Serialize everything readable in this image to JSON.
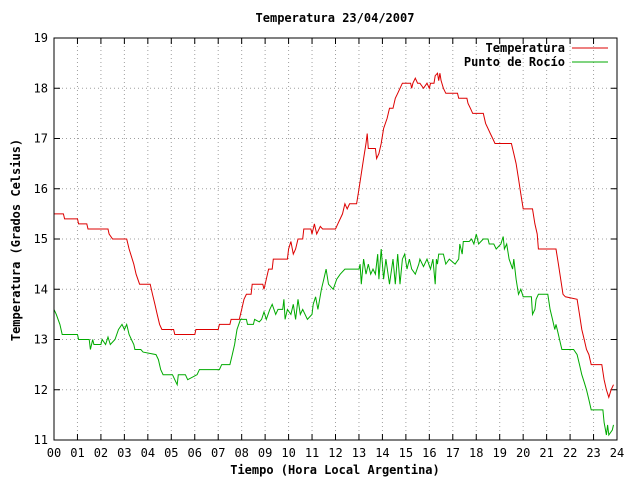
{
  "chart_data": {
    "type": "line",
    "title": "Temperatura 23/04/2007",
    "xlabel": "Tiempo (Hora Local Argentina)",
    "ylabel": "Temperatura (Grados Celsius)",
    "xlim": [
      0,
      24
    ],
    "ylim": [
      11,
      19
    ],
    "grid": true,
    "legend_position": "top-right",
    "x_ticks": [
      "00",
      "01",
      "02",
      "03",
      "04",
      "05",
      "06",
      "07",
      "08",
      "09",
      "10",
      "11",
      "12",
      "13",
      "14",
      "15",
      "16",
      "17",
      "18",
      "19",
      "20",
      "21",
      "22",
      "23",
      "24"
    ],
    "y_ticks": [
      "11",
      "12",
      "13",
      "14",
      "15",
      "16",
      "17",
      "18",
      "19"
    ],
    "series": [
      {
        "name": "Temperatura",
        "color": "#dd0000",
        "points": [
          [
            0.0,
            15.5
          ],
          [
            0.4,
            15.5
          ],
          [
            0.45,
            15.4
          ],
          [
            1.0,
            15.4
          ],
          [
            1.05,
            15.3
          ],
          [
            1.4,
            15.3
          ],
          [
            1.45,
            15.2
          ],
          [
            2.3,
            15.2
          ],
          [
            2.35,
            15.1
          ],
          [
            2.5,
            15.0
          ],
          [
            3.1,
            15.0
          ],
          [
            3.2,
            14.8
          ],
          [
            3.4,
            14.5
          ],
          [
            3.5,
            14.3
          ],
          [
            3.65,
            14.1
          ],
          [
            4.1,
            14.1
          ],
          [
            4.2,
            13.9
          ],
          [
            4.3,
            13.7
          ],
          [
            4.4,
            13.5
          ],
          [
            4.5,
            13.3
          ],
          [
            4.6,
            13.2
          ],
          [
            5.1,
            13.2
          ],
          [
            5.15,
            13.1
          ],
          [
            6.0,
            13.1
          ],
          [
            6.05,
            13.2
          ],
          [
            7.0,
            13.2
          ],
          [
            7.05,
            13.3
          ],
          [
            7.5,
            13.3
          ],
          [
            7.55,
            13.4
          ],
          [
            7.9,
            13.4
          ],
          [
            8.0,
            13.6
          ],
          [
            8.1,
            13.8
          ],
          [
            8.2,
            13.9
          ],
          [
            8.4,
            13.9
          ],
          [
            8.45,
            14.1
          ],
          [
            8.9,
            14.1
          ],
          [
            8.95,
            14.0
          ],
          [
            9.05,
            14.2
          ],
          [
            9.15,
            14.4
          ],
          [
            9.3,
            14.4
          ],
          [
            9.35,
            14.6
          ],
          [
            9.95,
            14.6
          ],
          [
            10.0,
            14.8
          ],
          [
            10.1,
            14.95
          ],
          [
            10.2,
            14.7
          ],
          [
            10.3,
            14.8
          ],
          [
            10.4,
            15.0
          ],
          [
            10.6,
            15.0
          ],
          [
            10.65,
            15.2
          ],
          [
            10.95,
            15.2
          ],
          [
            11.0,
            15.1
          ],
          [
            11.1,
            15.3
          ],
          [
            11.2,
            15.1
          ],
          [
            11.35,
            15.25
          ],
          [
            11.45,
            15.2
          ],
          [
            12.0,
            15.2
          ],
          [
            12.1,
            15.3
          ],
          [
            12.3,
            15.5
          ],
          [
            12.4,
            15.7
          ],
          [
            12.5,
            15.6
          ],
          [
            12.6,
            15.7
          ],
          [
            12.9,
            15.7
          ],
          [
            13.0,
            16.0
          ],
          [
            13.1,
            16.3
          ],
          [
            13.2,
            16.6
          ],
          [
            13.3,
            16.9
          ],
          [
            13.35,
            17.1
          ],
          [
            13.4,
            16.8
          ],
          [
            13.5,
            16.8
          ],
          [
            13.7,
            16.8
          ],
          [
            13.75,
            16.6
          ],
          [
            13.85,
            16.7
          ],
          [
            13.95,
            16.9
          ],
          [
            14.05,
            17.2
          ],
          [
            14.2,
            17.4
          ],
          [
            14.3,
            17.6
          ],
          [
            14.45,
            17.6
          ],
          [
            14.55,
            17.8
          ],
          [
            14.65,
            17.9
          ],
          [
            14.75,
            18.0
          ],
          [
            14.85,
            18.1
          ],
          [
            15.2,
            18.1
          ],
          [
            15.25,
            18.0
          ],
          [
            15.3,
            18.1
          ],
          [
            15.4,
            18.2
          ],
          [
            15.5,
            18.1
          ],
          [
            15.6,
            18.1
          ],
          [
            15.75,
            18.0
          ],
          [
            15.9,
            18.1
          ],
          [
            16.0,
            18.0
          ],
          [
            16.05,
            18.1
          ],
          [
            16.2,
            18.1
          ],
          [
            16.25,
            18.25
          ],
          [
            16.35,
            18.3
          ],
          [
            16.4,
            18.15
          ],
          [
            16.45,
            18.3
          ],
          [
            16.5,
            18.15
          ],
          [
            16.6,
            18.0
          ],
          [
            16.7,
            17.9
          ],
          [
            17.2,
            17.9
          ],
          [
            17.25,
            17.8
          ],
          [
            17.6,
            17.8
          ],
          [
            17.65,
            17.7
          ],
          [
            17.75,
            17.6
          ],
          [
            17.85,
            17.5
          ],
          [
            18.3,
            17.5
          ],
          [
            18.4,
            17.3
          ],
          [
            18.6,
            17.1
          ],
          [
            18.7,
            17.0
          ],
          [
            18.8,
            16.9
          ],
          [
            19.5,
            16.9
          ],
          [
            19.6,
            16.7
          ],
          [
            19.7,
            16.5
          ],
          [
            19.8,
            16.2
          ],
          [
            19.9,
            15.9
          ],
          [
            20.0,
            15.6
          ],
          [
            20.4,
            15.6
          ],
          [
            20.5,
            15.3
          ],
          [
            20.6,
            15.1
          ],
          [
            20.65,
            14.8
          ],
          [
            21.4,
            14.8
          ],
          [
            21.5,
            14.5
          ],
          [
            21.6,
            14.2
          ],
          [
            21.7,
            13.9
          ],
          [
            21.8,
            13.85
          ],
          [
            22.3,
            13.8
          ],
          [
            22.4,
            13.5
          ],
          [
            22.5,
            13.2
          ],
          [
            22.6,
            13.0
          ],
          [
            22.7,
            12.8
          ],
          [
            22.8,
            12.7
          ],
          [
            22.9,
            12.5
          ],
          [
            23.35,
            12.5
          ],
          [
            23.45,
            12.2
          ],
          [
            23.55,
            12.0
          ],
          [
            23.65,
            11.85
          ],
          [
            23.75,
            12.0
          ],
          [
            23.85,
            12.1
          ]
        ]
      },
      {
        "name": "Punto de Rocío",
        "color": "#00aa00",
        "points": [
          [
            0.0,
            13.6
          ],
          [
            0.1,
            13.5
          ],
          [
            0.25,
            13.3
          ],
          [
            0.35,
            13.1
          ],
          [
            1.0,
            13.1
          ],
          [
            1.05,
            13.0
          ],
          [
            1.5,
            13.0
          ],
          [
            1.55,
            12.8
          ],
          [
            1.65,
            13.0
          ],
          [
            1.7,
            12.9
          ],
          [
            2.0,
            12.9
          ],
          [
            2.05,
            13.0
          ],
          [
            2.2,
            12.9
          ],
          [
            2.3,
            13.05
          ],
          [
            2.4,
            12.9
          ],
          [
            2.6,
            13.0
          ],
          [
            2.75,
            13.2
          ],
          [
            2.9,
            13.3
          ],
          [
            3.0,
            13.2
          ],
          [
            3.1,
            13.3
          ],
          [
            3.2,
            13.1
          ],
          [
            3.3,
            13.0
          ],
          [
            3.4,
            12.9
          ],
          [
            3.45,
            12.8
          ],
          [
            3.7,
            12.8
          ],
          [
            3.8,
            12.75
          ],
          [
            4.35,
            12.7
          ],
          [
            4.45,
            12.6
          ],
          [
            4.55,
            12.4
          ],
          [
            4.65,
            12.3
          ],
          [
            5.05,
            12.3
          ],
          [
            5.15,
            12.2
          ],
          [
            5.25,
            12.1
          ],
          [
            5.3,
            12.3
          ],
          [
            5.6,
            12.3
          ],
          [
            5.7,
            12.2
          ],
          [
            6.1,
            12.3
          ],
          [
            6.2,
            12.4
          ],
          [
            7.05,
            12.4
          ],
          [
            7.15,
            12.5
          ],
          [
            7.5,
            12.5
          ],
          [
            7.6,
            12.7
          ],
          [
            7.7,
            12.9
          ],
          [
            7.8,
            13.2
          ],
          [
            7.95,
            13.4
          ],
          [
            8.2,
            13.4
          ],
          [
            8.25,
            13.3
          ],
          [
            8.5,
            13.3
          ],
          [
            8.55,
            13.4
          ],
          [
            8.75,
            13.35
          ],
          [
            8.85,
            13.4
          ],
          [
            8.95,
            13.55
          ],
          [
            9.05,
            13.4
          ],
          [
            9.2,
            13.6
          ],
          [
            9.3,
            13.7
          ],
          [
            9.45,
            13.5
          ],
          [
            9.55,
            13.6
          ],
          [
            9.75,
            13.6
          ],
          [
            9.8,
            13.8
          ],
          [
            9.85,
            13.4
          ],
          [
            9.95,
            13.6
          ],
          [
            10.1,
            13.5
          ],
          [
            10.2,
            13.7
          ],
          [
            10.3,
            13.4
          ],
          [
            10.4,
            13.8
          ],
          [
            10.5,
            13.5
          ],
          [
            10.6,
            13.6
          ],
          [
            10.8,
            13.4
          ],
          [
            11.0,
            13.5
          ],
          [
            11.05,
            13.7
          ],
          [
            11.15,
            13.85
          ],
          [
            11.25,
            13.6
          ],
          [
            11.4,
            14.0
          ],
          [
            11.5,
            14.2
          ],
          [
            11.6,
            14.4
          ],
          [
            11.7,
            14.1
          ],
          [
            11.9,
            14.0
          ],
          [
            12.05,
            14.2
          ],
          [
            12.2,
            14.3
          ],
          [
            12.4,
            14.4
          ],
          [
            13.0,
            14.4
          ],
          [
            13.05,
            14.5
          ],
          [
            13.1,
            14.1
          ],
          [
            13.2,
            14.6
          ],
          [
            13.3,
            14.3
          ],
          [
            13.4,
            14.5
          ],
          [
            13.5,
            14.3
          ],
          [
            13.6,
            14.4
          ],
          [
            13.7,
            14.3
          ],
          [
            13.8,
            14.7
          ],
          [
            13.85,
            14.2
          ],
          [
            13.95,
            14.8
          ],
          [
            14.05,
            14.2
          ],
          [
            14.15,
            14.6
          ],
          [
            14.3,
            14.1
          ],
          [
            14.45,
            14.6
          ],
          [
            14.55,
            14.1
          ],
          [
            14.65,
            14.7
          ],
          [
            14.75,
            14.1
          ],
          [
            14.85,
            14.6
          ],
          [
            14.95,
            14.7
          ],
          [
            15.05,
            14.4
          ],
          [
            15.15,
            14.6
          ],
          [
            15.25,
            14.4
          ],
          [
            15.4,
            14.3
          ],
          [
            15.55,
            14.5
          ],
          [
            15.6,
            14.6
          ],
          [
            15.75,
            14.45
          ],
          [
            15.9,
            14.6
          ],
          [
            16.05,
            14.4
          ],
          [
            16.15,
            14.6
          ],
          [
            16.25,
            14.1
          ],
          [
            16.3,
            14.6
          ],
          [
            16.35,
            14.5
          ],
          [
            16.4,
            14.7
          ],
          [
            16.6,
            14.7
          ],
          [
            16.7,
            14.5
          ],
          [
            16.85,
            14.6
          ],
          [
            17.1,
            14.5
          ],
          [
            17.25,
            14.6
          ],
          [
            17.3,
            14.9
          ],
          [
            17.4,
            14.7
          ],
          [
            17.45,
            14.95
          ],
          [
            17.7,
            14.95
          ],
          [
            17.8,
            15.0
          ],
          [
            17.9,
            14.9
          ],
          [
            18.0,
            15.1
          ],
          [
            18.1,
            14.9
          ],
          [
            18.3,
            15.0
          ],
          [
            18.5,
            15.0
          ],
          [
            18.55,
            14.9
          ],
          [
            18.75,
            14.9
          ],
          [
            18.85,
            14.8
          ],
          [
            19.05,
            14.9
          ],
          [
            19.15,
            15.05
          ],
          [
            19.2,
            14.8
          ],
          [
            19.3,
            14.9
          ],
          [
            19.4,
            14.6
          ],
          [
            19.55,
            14.4
          ],
          [
            19.6,
            14.6
          ],
          [
            19.7,
            14.2
          ],
          [
            19.8,
            13.9
          ],
          [
            19.9,
            14.0
          ],
          [
            20.0,
            13.85
          ],
          [
            20.35,
            13.85
          ],
          [
            20.4,
            13.5
          ],
          [
            20.5,
            13.6
          ],
          [
            20.55,
            13.8
          ],
          [
            20.65,
            13.9
          ],
          [
            21.05,
            13.9
          ],
          [
            21.15,
            13.6
          ],
          [
            21.25,
            13.4
          ],
          [
            21.35,
            13.2
          ],
          [
            21.4,
            13.3
          ],
          [
            21.5,
            13.1
          ],
          [
            21.6,
            12.9
          ],
          [
            21.65,
            12.8
          ],
          [
            22.15,
            12.8
          ],
          [
            22.3,
            12.7
          ],
          [
            22.4,
            12.5
          ],
          [
            22.5,
            12.3
          ],
          [
            22.6,
            12.15
          ],
          [
            22.7,
            12.0
          ],
          [
            22.8,
            11.8
          ],
          [
            22.9,
            11.6
          ],
          [
            23.4,
            11.6
          ],
          [
            23.45,
            11.35
          ],
          [
            23.55,
            11.1
          ],
          [
            23.6,
            11.3
          ],
          [
            23.65,
            11.1
          ],
          [
            23.8,
            11.2
          ],
          [
            23.85,
            11.3
          ]
        ]
      }
    ]
  }
}
